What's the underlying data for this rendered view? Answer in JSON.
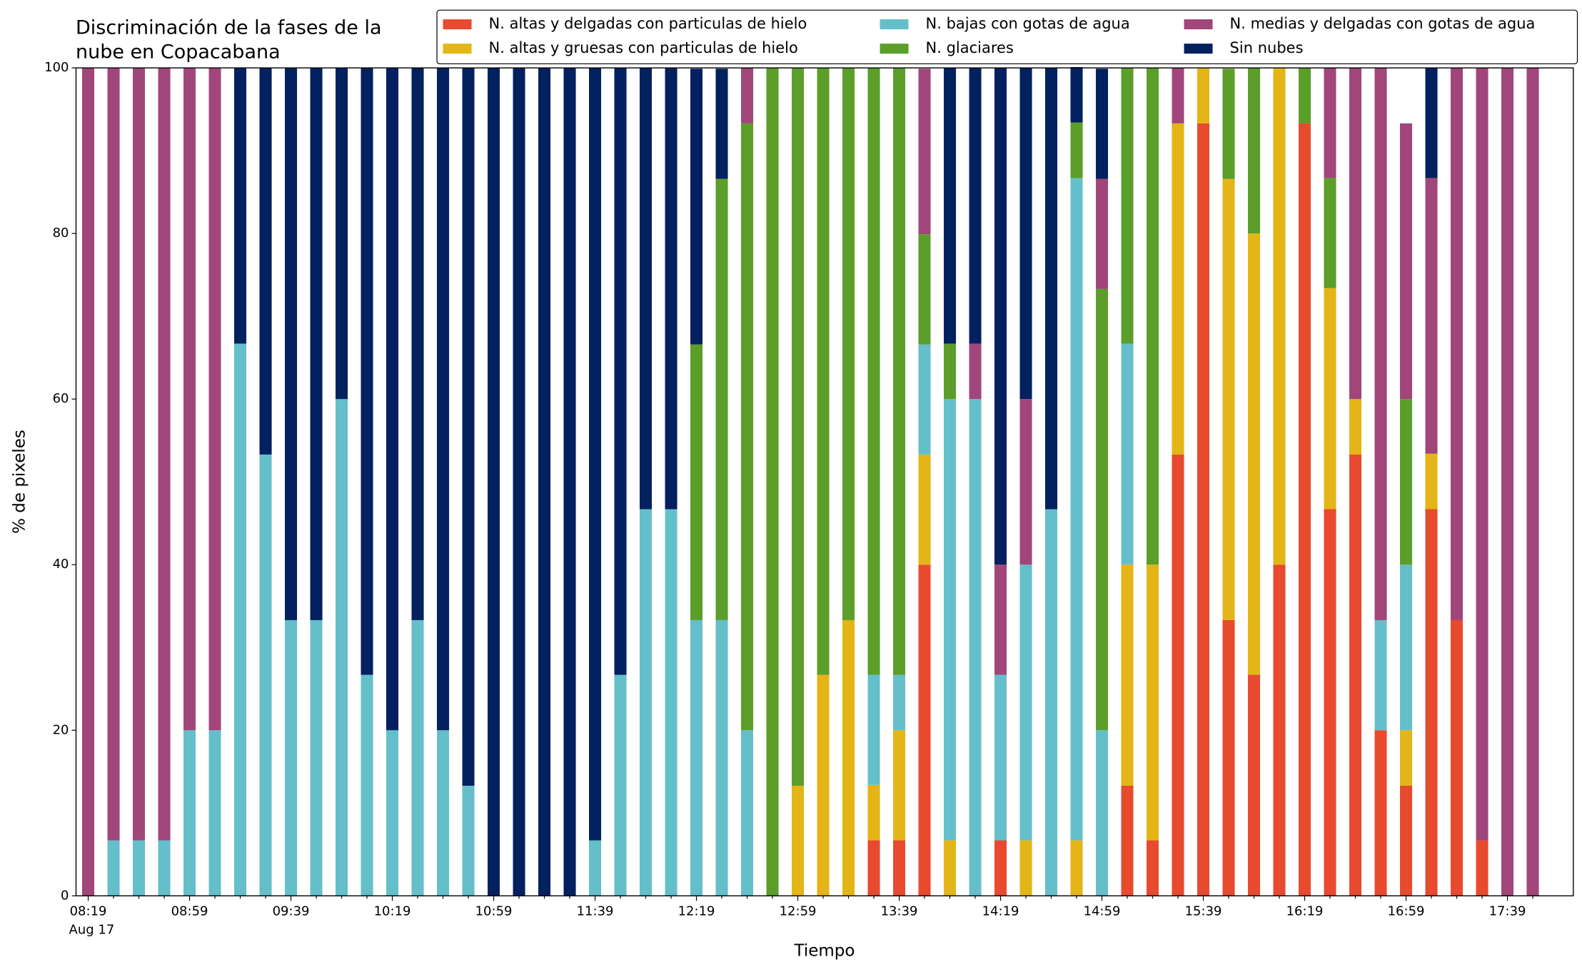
{
  "chart_data": {
    "type": "stacked_bar",
    "title": [
      "Discriminación de la fases de la",
      "nube en Copacabana"
    ],
    "x_label": "Tiempo",
    "y_label": "% de pixeles",
    "x_sublabel": "Aug 17",
    "categories": [
      "08:19",
      null,
      null,
      null,
      "08:59",
      null,
      null,
      null,
      "09:39",
      null,
      null,
      null,
      "10:19",
      null,
      null,
      null,
      "10:59",
      null,
      null,
      null,
      "11:39",
      null,
      null,
      null,
      "12:19",
      null,
      null,
      null,
      "12:59",
      null,
      null,
      null,
      "13:39",
      null,
      null,
      null,
      "14:19",
      null,
      null,
      null,
      "14:59",
      null,
      null,
      null,
      "15:39",
      null,
      null,
      null,
      "16:19",
      null,
      null,
      null,
      "16:59",
      null,
      null,
      null,
      "17:39",
      null
    ],
    "ylim": [
      0,
      100
    ],
    "yticks": [
      0,
      20,
      40,
      60,
      80,
      100
    ],
    "legend": "top",
    "series": [
      {
        "name": "N. altas y delgadas con particulas de hielo",
        "color": "#e84a2f",
        "values": [
          0,
          0,
          0,
          0,
          0,
          0,
          0,
          0,
          0,
          0,
          0,
          0,
          0,
          0,
          0,
          0,
          0,
          0,
          0,
          0,
          0,
          0,
          0,
          0,
          0,
          0,
          0,
          0,
          0,
          0,
          0,
          6.7,
          6.7,
          40,
          0,
          0,
          6.7,
          0,
          0,
          0,
          0,
          13.3,
          6.7,
          53.3,
          93.3,
          33.3,
          26.7,
          40,
          93.3,
          46.7,
          53.3,
          20,
          13.3,
          46.7,
          33.3,
          6.7,
          0,
          0
        ]
      },
      {
        "name": "N. altas y gruesas con particulas de hielo",
        "color": "#e3b516",
        "values": [
          0,
          0,
          0,
          0,
          0,
          0,
          0,
          0,
          0,
          0,
          0,
          0,
          0,
          0,
          0,
          0,
          0,
          0,
          0,
          0,
          0,
          0,
          0,
          0,
          0,
          0,
          0,
          0,
          13.3,
          26.7,
          33.3,
          6.7,
          13.3,
          13.3,
          6.7,
          0,
          0,
          6.7,
          0,
          6.7,
          0,
          26.7,
          33.3,
          40,
          6.7,
          53.3,
          53.3,
          60,
          0,
          26.7,
          6.7,
          0,
          6.7,
          6.7,
          0,
          0,
          0,
          0
        ]
      },
      {
        "name": "N. bajas con gotas de agua",
        "color": "#64bfca",
        "values": [
          0,
          6.7,
          6.7,
          6.7,
          20,
          20,
          66.7,
          53.3,
          33.3,
          33.3,
          60,
          26.7,
          20,
          33.3,
          20,
          13.3,
          0,
          0,
          0,
          0,
          6.7,
          26.7,
          46.7,
          46.7,
          33.3,
          33.3,
          20,
          0,
          0,
          0,
          0,
          13.3,
          6.7,
          13.3,
          53.3,
          60,
          20,
          33.3,
          46.7,
          80,
          20,
          26.7,
          0,
          0,
          0,
          0,
          0,
          0,
          0,
          0,
          0,
          13.3,
          20,
          0,
          0,
          0,
          0,
          0
        ]
      },
      {
        "name": "N. glaciares",
        "color": "#5b9e2a",
        "values": [
          0,
          0,
          0,
          0,
          0,
          0,
          0,
          0,
          0,
          0,
          0,
          0,
          0,
          0,
          0,
          0,
          0,
          0,
          0,
          0,
          0,
          0,
          0,
          0,
          33.3,
          53.3,
          73.3,
          100,
          86.7,
          73.3,
          66.7,
          73.3,
          73.3,
          13.3,
          6.7,
          0,
          0,
          0,
          0,
          6.7,
          53.3,
          33.3,
          60,
          0,
          0,
          13.3,
          20,
          0,
          6.7,
          13.3,
          0,
          0,
          20,
          0,
          0,
          0,
          0,
          0
        ]
      },
      {
        "name": "N. medias y delgadas con gotas de agua",
        "color": "#a0467a",
        "values": [
          100,
          93.3,
          93.3,
          93.3,
          80,
          80,
          0,
          0,
          0,
          0,
          0,
          0,
          0,
          0,
          0,
          0,
          0,
          0,
          0,
          0,
          0,
          0,
          0,
          0,
          0,
          0,
          6.7,
          0,
          0,
          0,
          0,
          0,
          0,
          20,
          0,
          6.7,
          13.3,
          20,
          0,
          0,
          13.3,
          0,
          0,
          6.7,
          0,
          0,
          0,
          0,
          0,
          13.3,
          40,
          66.7,
          33.3,
          33.3,
          66.7,
          93.3,
          100,
          100
        ]
      },
      {
        "name": "Sin nubes",
        "color": "#03205f",
        "values": [
          0,
          0,
          0,
          0,
          0,
          0,
          33.3,
          46.7,
          66.7,
          66.7,
          40,
          73.3,
          80,
          66.7,
          80,
          86.7,
          100,
          100,
          100,
          100,
          93.3,
          73.3,
          53.3,
          53.3,
          33.3,
          13.3,
          0,
          0,
          0,
          0,
          0,
          0,
          0,
          0,
          33.3,
          33.3,
          60,
          40,
          53.3,
          6.7,
          13.3,
          0,
          0,
          0,
          0,
          0,
          0,
          0,
          0,
          0,
          0,
          0,
          0,
          13.3,
          0,
          0,
          0,
          0
        ]
      }
    ]
  }
}
